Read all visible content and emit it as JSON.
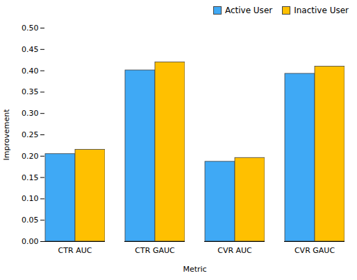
{
  "chart_data": {
    "type": "bar",
    "categories": [
      "CTR AUC",
      "CTR GAUC",
      "CVR AUC",
      "CVR GAUC"
    ],
    "series": [
      {
        "name": "Active User",
        "color": "#3FA9F5",
        "values": [
          0.205,
          0.401,
          0.187,
          0.393
        ]
      },
      {
        "name": "Inactive User",
        "color": "#FFC000",
        "values": [
          0.215,
          0.42,
          0.196,
          0.41
        ]
      }
    ],
    "xlabel": "Metric",
    "ylabel": "Improvement",
    "ylim": [
      0,
      0.5
    ],
    "yticks": [
      {
        "value": 0,
        "label": "0.00"
      },
      0.05,
      {
        "value": 0.1,
        "label": "0.10"
      },
      0.15,
      {
        "value": 0.2,
        "label": "0.20"
      },
      0.25,
      {
        "value": 0.3,
        "label": "0.30"
      },
      0.35,
      {
        "value": 0.4,
        "label": "0.40"
      },
      0.45,
      {
        "value": 0.5,
        "label": "0.50"
      }
    ],
    "legend": "upper right",
    "grid": false
  }
}
